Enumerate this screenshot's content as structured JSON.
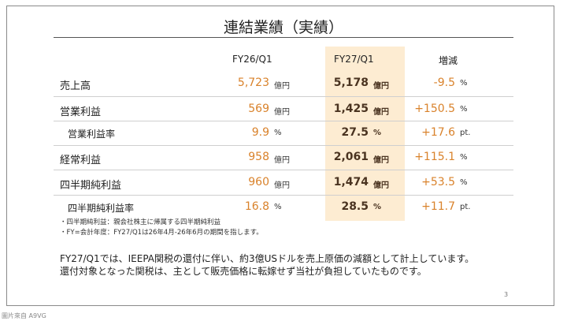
{
  "title": "連結業績（実績）",
  "table": {
    "headers": [
      "FY26/Q1",
      "FY27/Q1",
      "増減"
    ],
    "rows": [
      {
        "label": "売上高",
        "fy26": "5,723",
        "fy26_unit": "億円",
        "fy27": "5,178",
        "fy27_unit": "億円",
        "change": "-9.5",
        "change_unit": "%"
      },
      {
        "label": "営業利益",
        "fy26": "569",
        "fy26_unit": "億円",
        "fy27": "1,425",
        "fy27_unit": "億円",
        "change": "+150.5",
        "change_unit": "%"
      },
      {
        "label": "営業利益率",
        "fy26": "9.9",
        "fy26_unit": "%",
        "fy27": "27.5",
        "fy27_unit": "%",
        "change": "+17.6",
        "change_unit": "pt."
      },
      {
        "label": "経常利益",
        "fy26": "958",
        "fy26_unit": "億円",
        "fy27": "2,061",
        "fy27_unit": "億円",
        "change": "+115.1",
        "change_unit": "%"
      },
      {
        "label": "四半期純利益",
        "fy26": "960",
        "fy26_unit": "億円",
        "fy27": "1,474",
        "fy27_unit": "億円",
        "change": "+53.5",
        "change_unit": "%"
      },
      {
        "label": "四半期純利益率",
        "fy26": "16.8",
        "fy26_unit": "%",
        "fy27": "28.5",
        "fy27_unit": "%",
        "change": "+11.7",
        "change_unit": "pt."
      }
    ]
  },
  "notes": [
    "・四半期純利益：親会社株主に帰属する四半期純利益",
    "・FY=会計年度：FY27/Q1は26年4月-26年6月の期間を指します。"
  ],
  "body": [
    "FY27/Q1では、IEEPA関税の還付に伴い、約3億USドルを売上原価の減額として計上しています。",
    "還付対象となった関税は、主として販売価格に転嫁せず当社が負担していたものです。"
  ],
  "page_number": "3",
  "watermark": "圖片來自 A9VG"
}
